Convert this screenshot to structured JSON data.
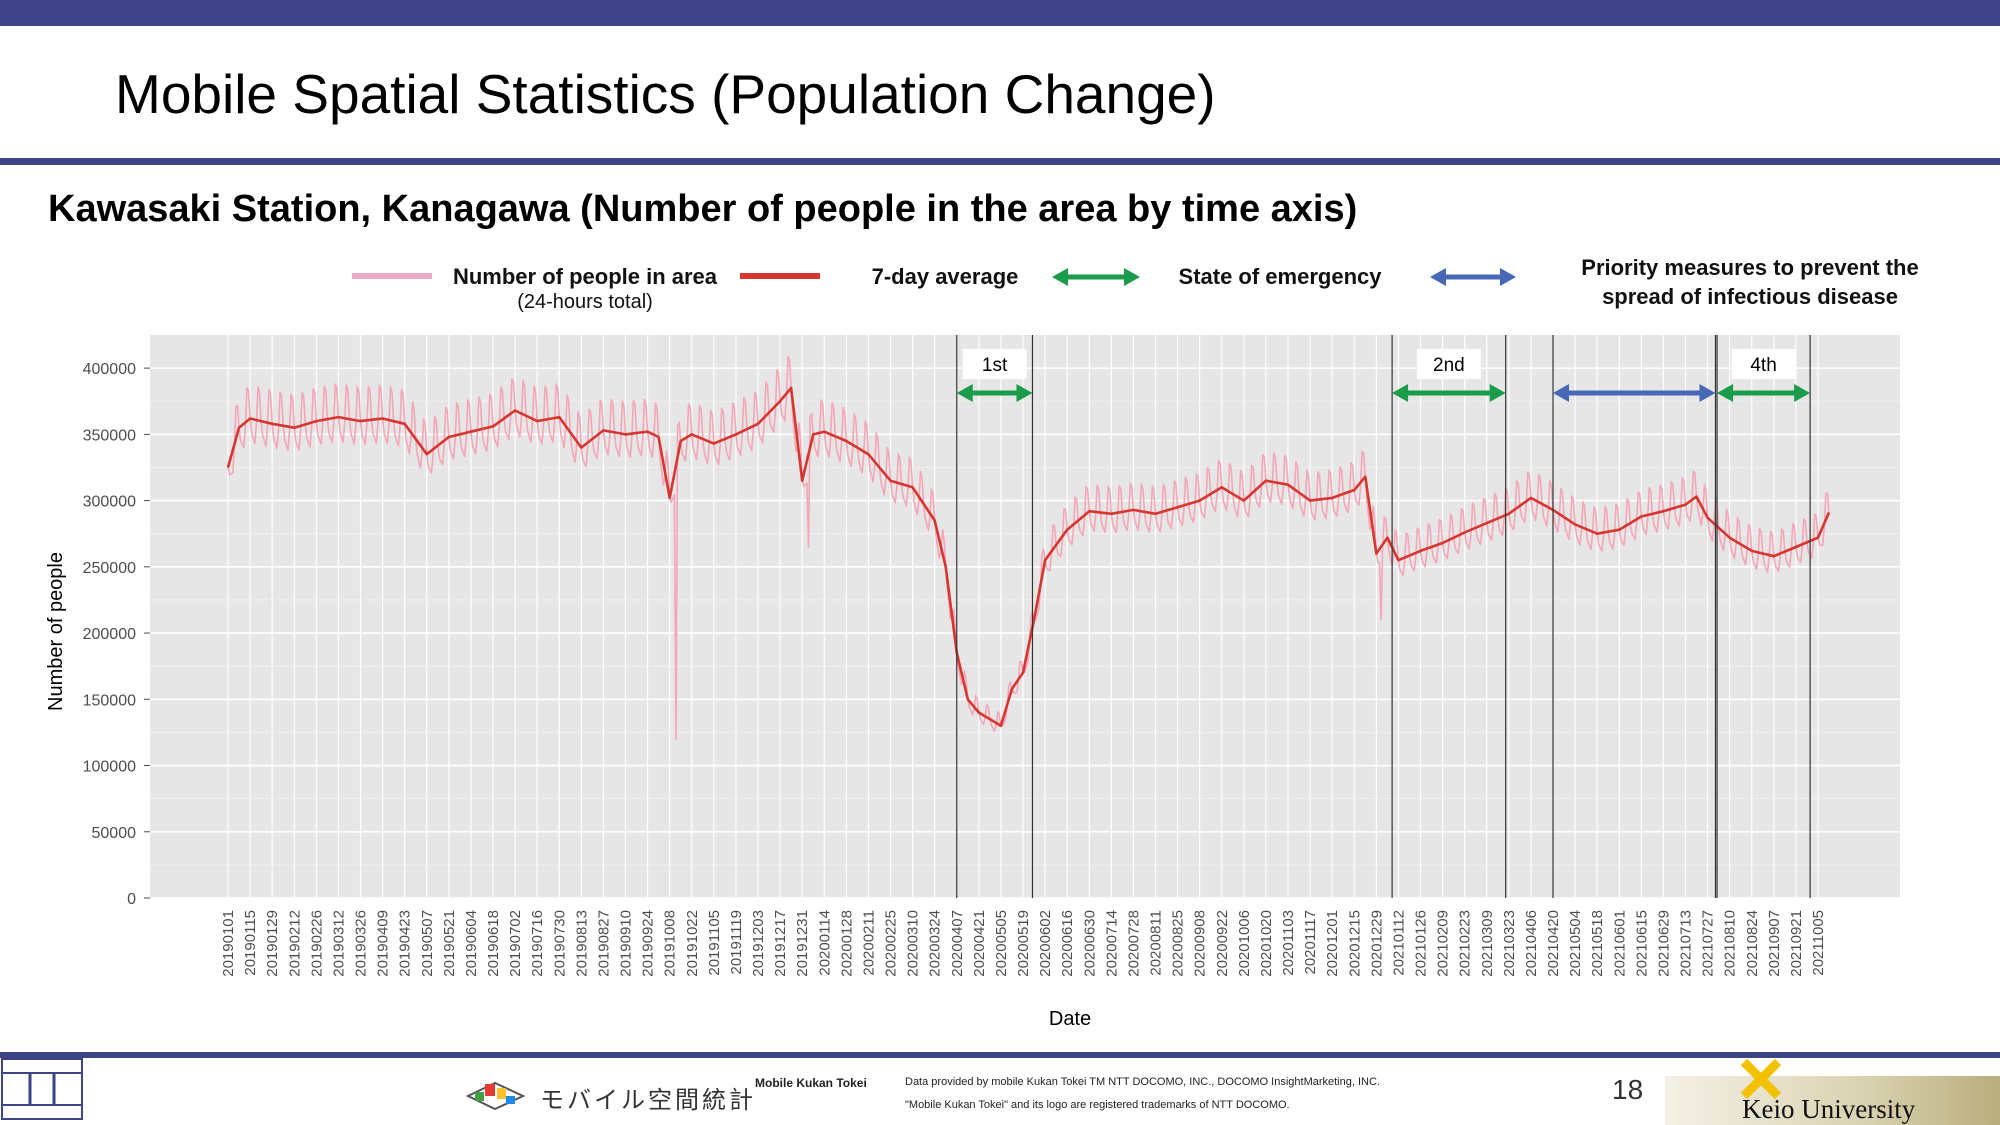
{
  "slide": {
    "title": "Mobile Spatial Statistics (Population Change)",
    "subtitle": "Kawasaki Station, Kanagawa (Number of people in the area by time axis)",
    "page_number": "18"
  },
  "legend": {
    "people": "Number of people in area",
    "people_sub": "(24-hours total)",
    "avg": "7-day average",
    "emergency": "State of emergency",
    "priority_line1": "Priority measures to prevent the",
    "priority_line2": "spread of infectious disease"
  },
  "footer": {
    "logo_text": "モバイル空間統計",
    "brand": "Mobile Kukan Tokei",
    "credit_line1": "Data provided by mobile Kukan Tokei TM NTT DOCOMO, INC., DOCOMO InsightMarketing, INC.",
    "credit_line2": "\"Mobile Kukan Tokei\" and its logo are registered trademarks of NTT DOCOMO.",
    "university": "Keio University"
  },
  "colors": {
    "header": "#3f4387",
    "daily": "#f4a6b6",
    "avg": "#d7352f",
    "emergency": "#1a9c4a",
    "priority": "#4668b5",
    "panel": "#e6e6e6"
  },
  "chart_data": {
    "type": "line",
    "xlabel": "Date",
    "ylabel": "Number of people",
    "ylim": [
      0,
      425000
    ],
    "yticks": [
      0,
      50000,
      100000,
      150000,
      200000,
      250000,
      300000,
      350000,
      400000
    ],
    "x_tick_labels": [
      "20190101",
      "20190115",
      "20190129",
      "20190212",
      "20190226",
      "20190312",
      "20190326",
      "20190409",
      "20190423",
      "20190507",
      "20190521",
      "20190604",
      "20190618",
      "20190702",
      "20190716",
      "20190730",
      "20190813",
      "20190827",
      "20190910",
      "20190924",
      "20191008",
      "20191022",
      "20191105",
      "20191119",
      "20191203",
      "20191217",
      "20191231",
      "20200114",
      "20200128",
      "20200211",
      "20200225",
      "20200310",
      "20200324",
      "20200407",
      "20200421",
      "20200505",
      "20200519",
      "20200602",
      "20200616",
      "20200630",
      "20200714",
      "20200728",
      "20200811",
      "20200825",
      "20200908",
      "20200922",
      "20201006",
      "20201020",
      "20201103",
      "20201117",
      "20201201",
      "20201215",
      "20201229",
      "20210112",
      "20210126",
      "20210209",
      "20210223",
      "20210309",
      "20210323",
      "20210406",
      "20210420",
      "20210504",
      "20210518",
      "20210601",
      "20210615",
      "20210629",
      "20210713",
      "20210727",
      "20210810",
      "20210824",
      "20210907",
      "20210921",
      "20211005"
    ],
    "grid": true,
    "series": [
      {
        "name": "7-day average",
        "x": [
          "20190101",
          "20190108",
          "20190115",
          "20190129",
          "20190212",
          "20190226",
          "20190312",
          "20190326",
          "20190409",
          "20190423",
          "20190507",
          "20190521",
          "20190604",
          "20190618",
          "20190702",
          "20190716",
          "20190730",
          "20190813",
          "20190827",
          "20190910",
          "20190924",
          "20191001",
          "20191008",
          "20191015",
          "20191022",
          "20191105",
          "20191119",
          "20191203",
          "20191217",
          "20191224",
          "20191231",
          "20200107",
          "20200114",
          "20200128",
          "20200211",
          "20200225",
          "20200310",
          "20200324",
          "20200331",
          "20200407",
          "20200414",
          "20200421",
          "20200505",
          "20200512",
          "20200519",
          "20200526",
          "20200602",
          "20200616",
          "20200630",
          "20200714",
          "20200728",
          "20200811",
          "20200825",
          "20200908",
          "20200922",
          "20201006",
          "20201020",
          "20201103",
          "20201117",
          "20201201",
          "20201215",
          "20201222",
          "20201229",
          "20210105",
          "20210112",
          "20210126",
          "20210209",
          "20210223",
          "20210309",
          "20210323",
          "20210406",
          "20210420",
          "20210504",
          "20210518",
          "20210601",
          "20210615",
          "20210629",
          "20210713",
          "20210720",
          "20210727",
          "20210810",
          "20210824",
          "20210907",
          "20210921",
          "20211005",
          "20211012"
        ],
        "values": [
          325000,
          355000,
          362000,
          358000,
          355000,
          360000,
          363000,
          360000,
          362000,
          358000,
          335000,
          348000,
          352000,
          356000,
          368000,
          360000,
          363000,
          340000,
          353000,
          350000,
          352000,
          348000,
          302000,
          345000,
          350000,
          343000,
          350000,
          358000,
          375000,
          385000,
          315000,
          350000,
          352000,
          345000,
          335000,
          315000,
          310000,
          285000,
          250000,
          185000,
          150000,
          140000,
          130000,
          158000,
          170000,
          210000,
          255000,
          278000,
          292000,
          290000,
          293000,
          290000,
          295000,
          300000,
          310000,
          300000,
          315000,
          312000,
          300000,
          302000,
          308000,
          318000,
          260000,
          272000,
          255000,
          262000,
          268000,
          276000,
          283000,
          290000,
          302000,
          293000,
          282000,
          275000,
          278000,
          288000,
          292000,
          297000,
          303000,
          287000,
          272000,
          262000,
          258000,
          265000,
          272000,
          291000
        ],
        "color": "#d7352f"
      },
      {
        "name": "Number of people in area",
        "note_values_daily": "same trend with weekly oscillation",
        "dips": [
          {
            "x": "20191012",
            "value": 120000
          },
          {
            "x": "20200104",
            "value": 265000
          },
          {
            "x": "20210101",
            "value": 210000
          }
        ],
        "color": "#f4a6b6"
      }
    ],
    "annotations": [
      {
        "label": "1st",
        "type": "State of emergency",
        "start": "20200407",
        "end": "20200525"
      },
      {
        "label": "2nd",
        "type": "State of emergency",
        "start": "20210108",
        "end": "20210321"
      },
      {
        "label": "",
        "type": "Priority measures to prevent the spread of infectious disease",
        "start": "20210420",
        "end": "20210801"
      },
      {
        "label": "4th",
        "type": "State of emergency",
        "start": "20210802",
        "end": "20210930"
      }
    ]
  }
}
